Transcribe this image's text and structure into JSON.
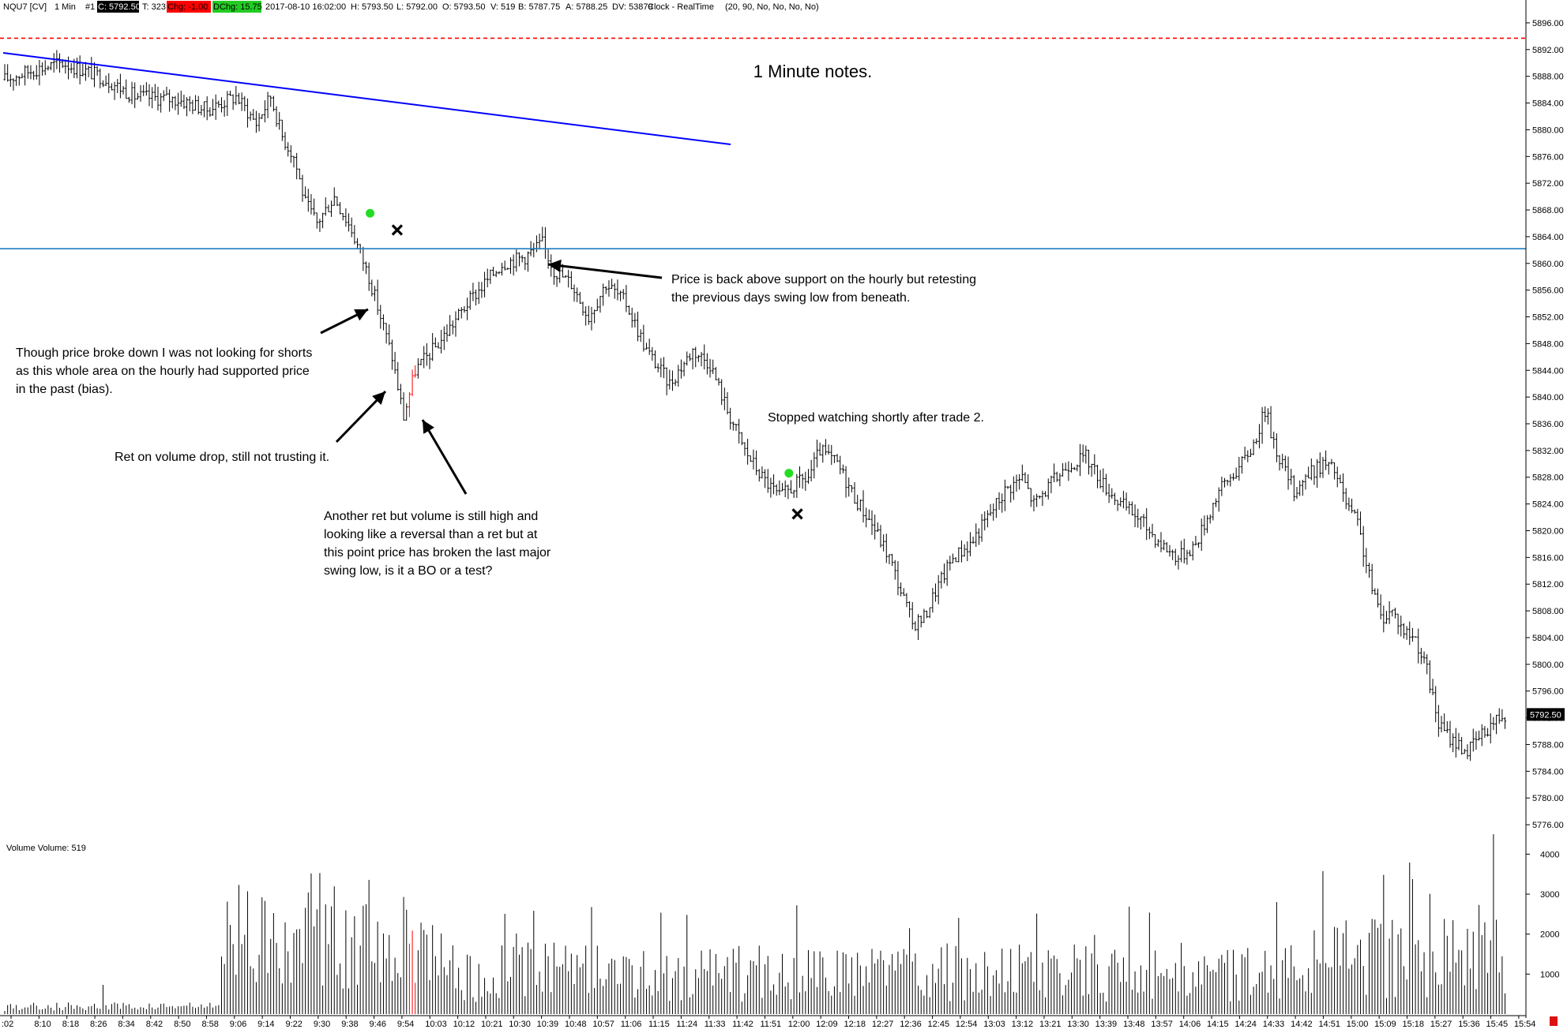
{
  "header": {
    "symbol": "NQU7 [CV]",
    "interval": "1 Min",
    "chart_num": "#1",
    "close": "C: 5792.50",
    "ticks": "T: 323",
    "change": "Chg: -1.00",
    "daily_change": "DChg: 15.75",
    "datetime": "2017-08-10 16:02:00",
    "high": "H: 5793.50",
    "low": "L: 5792.00",
    "open": "O: 5793.50",
    "volume": "V: 519",
    "bid": "B: 5787.75",
    "ask": "A: 5788.25",
    "daily_volume": "DV: 53879",
    "clock": "Clock - RealTime",
    "params": "(20, 90, No, No, No, No)"
  },
  "title": "1 Minute notes.",
  "annotations": {
    "a1": [
      "Though price broke down I was not looking for shorts",
      "as this whole area on the hourly had supported price",
      "in the past (bias)."
    ],
    "a2": [
      "Ret on volume drop, still not trusting it."
    ],
    "a3": [
      "Another ret but volume is still high and",
      "looking like a reversal than a ret but at",
      "this point price has broken the last major",
      "swing low, is it a BO or a test?"
    ],
    "a4": [
      "Price is back above support on the hourly but retesting",
      "the previous days swing low from beneath."
    ],
    "a5": [
      "Stopped watching shortly after trade 2."
    ]
  },
  "colors": {
    "bar": "#000000",
    "bar_highlight": "#ff0000",
    "trendline": "#0000ff",
    "support_line": "#1f7fbf",
    "resistance_dashed": "#ff0000",
    "entry_marker": "#22dd22",
    "exit_marker": "#000000",
    "change_bg": "#ff0000",
    "dchange_bg": "#22cc22",
    "close_bg": "#000000"
  },
  "chart_data": {
    "type": "ohlc",
    "symbol": "NQU7",
    "date": "2017-08-10",
    "price_ylim": [
      5774,
      5898
    ],
    "price_ticks": [
      "5896.00",
      "5892.00",
      "5888.00",
      "5884.00",
      "5880.00",
      "5876.00",
      "5872.00",
      "5868.00",
      "5864.00",
      "5860.00",
      "5856.00",
      "5852.00",
      "5848.00",
      "5844.00",
      "5840.00",
      "5836.00",
      "5832.00",
      "5828.00",
      "5824.00",
      "5820.00",
      "5816.00",
      "5812.00",
      "5808.00",
      "5804.00",
      "5800.00",
      "5796.00",
      "5792.00",
      "5788.00",
      "5784.00",
      "5780.00",
      "5776.00"
    ],
    "last_price_label": "5792.50",
    "time_labels": [
      ":02",
      "8:10",
      "8:18",
      "8:26",
      "8:34",
      "8:42",
      "8:50",
      "8:58",
      "9:06",
      "9:14",
      "9:22",
      "9:30",
      "9:38",
      "9:46",
      "9:54",
      "10:03",
      "10:12",
      "10:21",
      "10:30",
      "10:39",
      "10:48",
      "10:57",
      "11:06",
      "11:15",
      "11:24",
      "11:33",
      "11:42",
      "11:51",
      "12:00",
      "12:09",
      "12:18",
      "12:27",
      "12:36",
      "12:45",
      "12:54",
      "13:03",
      "13:12",
      "13:21",
      "13:30",
      "13:39",
      "13:48",
      "13:57",
      "14:06",
      "14:15",
      "14:24",
      "14:33",
      "14:42",
      "14:51",
      "15:00",
      "15:09",
      "15:18",
      "15:27",
      "15:36",
      "15:45",
      "15:54"
    ],
    "path_anchors": [
      [
        0,
        5887.5
      ],
      [
        10,
        5889
      ],
      [
        20,
        5890
      ],
      [
        33,
        5888
      ],
      [
        45,
        5885
      ],
      [
        60,
        5884.5
      ],
      [
        70,
        5883
      ],
      [
        80,
        5885
      ],
      [
        87,
        5881
      ],
      [
        92,
        5885
      ],
      [
        96,
        5879
      ],
      [
        100,
        5876
      ],
      [
        104,
        5869
      ],
      [
        108,
        5866
      ],
      [
        114,
        5870
      ],
      [
        120,
        5865
      ],
      [
        126,
        5858
      ],
      [
        130,
        5852
      ],
      [
        134,
        5846
      ],
      [
        138,
        5837
      ],
      [
        142,
        5844
      ],
      [
        150,
        5848
      ],
      [
        160,
        5854
      ],
      [
        166,
        5857
      ],
      [
        172,
        5860
      ],
      [
        180,
        5861
      ],
      [
        186,
        5863
      ],
      [
        190,
        5859
      ],
      [
        196,
        5857
      ],
      [
        202,
        5852
      ],
      [
        208,
        5857
      ],
      [
        215,
        5854
      ],
      [
        222,
        5847
      ],
      [
        230,
        5842
      ],
      [
        238,
        5847
      ],
      [
        244,
        5845
      ],
      [
        250,
        5838
      ],
      [
        256,
        5832
      ],
      [
        262,
        5828
      ],
      [
        268,
        5825
      ],
      [
        274,
        5827
      ],
      [
        278,
        5828
      ],
      [
        282,
        5832
      ],
      [
        288,
        5830
      ],
      [
        294,
        5825
      ],
      [
        300,
        5821
      ],
      [
        306,
        5816
      ],
      [
        310,
        5811
      ],
      [
        314,
        5806
      ],
      [
        318,
        5807
      ],
      [
        322,
        5811
      ],
      [
        328,
        5816
      ],
      [
        334,
        5818
      ],
      [
        340,
        5822
      ],
      [
        346,
        5826
      ],
      [
        352,
        5828
      ],
      [
        356,
        5824
      ],
      [
        362,
        5827
      ],
      [
        368,
        5830
      ],
      [
        374,
        5831
      ],
      [
        380,
        5827
      ],
      [
        386,
        5824
      ],
      [
        392,
        5822
      ],
      [
        400,
        5818
      ],
      [
        406,
        5816
      ],
      [
        412,
        5818
      ],
      [
        420,
        5826
      ],
      [
        428,
        5830
      ],
      [
        432,
        5833
      ],
      [
        436,
        5838
      ],
      [
        440,
        5832
      ],
      [
        446,
        5826
      ],
      [
        450,
        5828
      ],
      [
        456,
        5830
      ],
      [
        460,
        5829
      ],
      [
        464,
        5824
      ],
      [
        468,
        5821
      ],
      [
        472,
        5813
      ],
      [
        476,
        5807
      ],
      [
        480,
        5808
      ],
      [
        484,
        5805
      ],
      [
        488,
        5804
      ],
      [
        492,
        5799
      ],
      [
        496,
        5791
      ],
      [
        500,
        5789
      ],
      [
        506,
        5787
      ],
      [
        510,
        5789
      ],
      [
        514,
        5791
      ],
      [
        518,
        5792.5
      ]
    ],
    "volume_ylim": [
      0,
      4600
    ],
    "volume_ticks": [
      "4000",
      "3000",
      "2000",
      "1000"
    ],
    "volume_label": "Volume  Volume: 519",
    "trendline": {
      "from": [
        "7:02",
        5891.5
      ],
      "to": [
        "11:42",
        5877.8
      ]
    },
    "support_level": 5862.2,
    "resistance_dashed": 5893.7,
    "entries": [
      {
        "time": "9:46",
        "price": 5867.5
      },
      {
        "time": "12:00",
        "price": 5828.6
      }
    ],
    "exits": [
      {
        "time": "9:54",
        "price": 5865
      },
      {
        "time": "12:06",
        "price": 5822.5
      }
    ]
  }
}
